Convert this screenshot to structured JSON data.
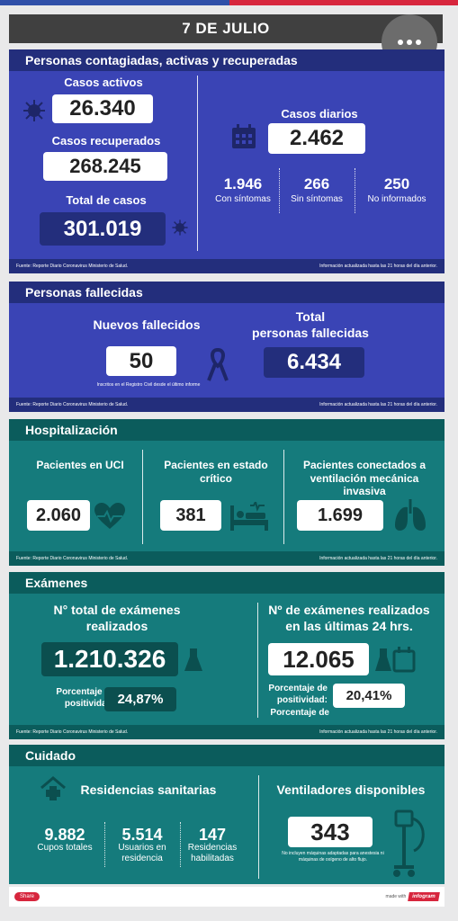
{
  "date": "7 DE JULIO",
  "sec1": {
    "title": "Personas contagiadas, activas y recuperadas",
    "activos_label": "Casos activos",
    "activos": "26.340",
    "recuperados_label": "Casos recuperados",
    "recuperados": "268.245",
    "total_label": "Total de casos",
    "total": "301.019",
    "diarios_label": "Casos diarios",
    "diarios": "2.462",
    "con_val": "1.946",
    "con_label": "Con síntomas",
    "sin_val": "266",
    "sin_label": "Sin síntomas",
    "noinf_val": "250",
    "noinf_label": "No informados",
    "source": "Fuente: Reporte Diario Coronavirus Ministerio de Salud.",
    "update": "Información actualizada hasta las 21 horas  del día anterior."
  },
  "sec2": {
    "title": "Personas fallecidas",
    "nuevos_label": "Nuevos fallecidos",
    "nuevos": "50",
    "nuevos_note": "Inscritos en el Registro Civil desde el último informe",
    "total_label1": "Total",
    "total_label2": "personas fallecidas",
    "total": "6.434",
    "source": "Fuente: Reporte Diario Coronavirus Ministerio de Salud.",
    "update": "Información actualizada hasta las 21 horas  del día anterior."
  },
  "sec3": {
    "title": "Hospitalización",
    "uci_label": "Pacientes en UCI",
    "uci": "2.060",
    "critico_label1": "Pacientes en estado",
    "critico_label2": "crítico",
    "critico": "381",
    "vent_label1": "Pacientes conectados a",
    "vent_label2": "ventilación mecánica invasiva",
    "vent": "1.699",
    "source": "Fuente: Reporte Diario Coronavirus Ministerio de Salud.",
    "update": "Información actualizada hasta las 21 horas  del día anterior."
  },
  "sec4": {
    "title": "Exámenes",
    "total_label1": "N° total de exámenes",
    "total_label2": "realizados",
    "total": "1.210.326",
    "pos_label1": "Porcentaje de",
    "pos_label2": "positividad:",
    "pos_total": "24,87%",
    "day_label1": "Nº de exámenes realizados",
    "day_label2": "en las últimas 24 hrs.",
    "day": "12.065",
    "pos_day": "20,41%",
    "source": "Fuente: Reporte Diario Coronavirus Ministerio de Salud.",
    "update": "Información actualizada hasta las 21 horas  del día anterior."
  },
  "sec5": {
    "title": "Cuidado",
    "res_label": "Residencias sanitarias",
    "cupos_val": "9.882",
    "cupos_label": "Cupos totales",
    "usuarios_val": "5.514",
    "usuarios_label1": "Usuarios en",
    "usuarios_label2": "residencia",
    "hab_val": "147",
    "hab_label1": "Residencias",
    "hab_label2": "habilitadas",
    "vent_label": "Ventiladores disponibles",
    "vent": "343",
    "vent_note1": "No incluyen máquinas adaptadas para anestesia ni",
    "vent_note2": "máquinas de oxígeno de alto flujo."
  },
  "footer": {
    "share": "Share",
    "made_with": "made with",
    "brand": "infogram"
  },
  "colors": {
    "blue_head": "#232e7c",
    "blue_body": "#3a44b5",
    "teal_head": "#0b5c5c",
    "teal_body": "#157b7c",
    "red": "#d7263d"
  }
}
